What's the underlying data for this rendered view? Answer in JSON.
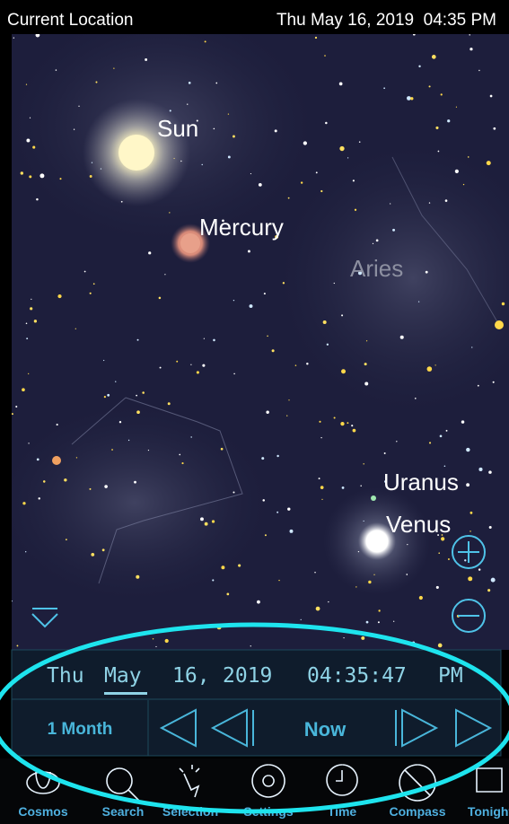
{
  "status_bar": {
    "location": "Current Location",
    "datetime": "Thu May 16, 2019  04:35 PM"
  },
  "sky_labels": [
    "Sun",
    "Mercury",
    "Aries",
    "Uranus",
    "Venus"
  ],
  "time_panel": {
    "date_parts": [
      "Thu",
      "May",
      "16,",
      "2019",
      "04:35:47",
      "PM"
    ],
    "step": "1 Month",
    "now": "Now"
  },
  "toolbar": [
    "Cosmos",
    "Search",
    "Selection",
    "Settings",
    "Time",
    "Compass",
    "Tonight"
  ]
}
